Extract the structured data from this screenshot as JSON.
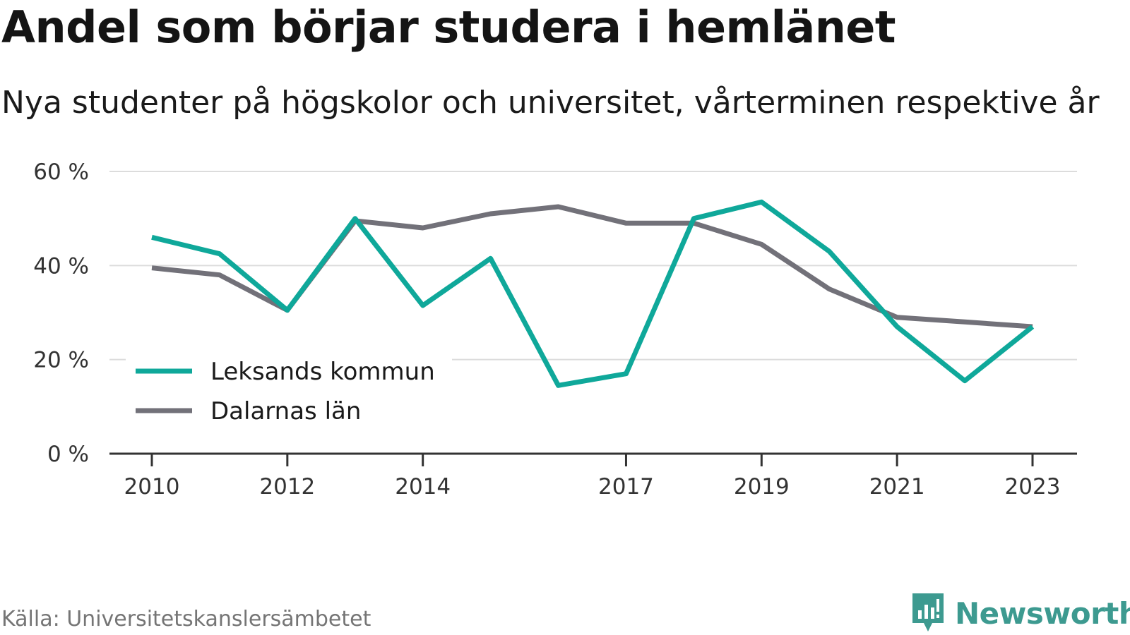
{
  "chart_data": {
    "type": "line",
    "title": "Andel som börjar studera i hemlänet",
    "subtitle": "Nya studenter på högskolor och universitet, vårterminen respektive år",
    "x": [
      2010,
      2011,
      2012,
      2013,
      2014,
      2015,
      2016,
      2017,
      2018,
      2019,
      2020,
      2021,
      2022,
      2023
    ],
    "x_ticks": [
      2010,
      2012,
      2014,
      2017,
      2019,
      2021,
      2023
    ],
    "y_ticks": [
      0,
      20,
      40,
      60
    ],
    "y_tick_labels": [
      "0 %",
      "20 %",
      "40 %",
      "60 %"
    ],
    "ylim": [
      0,
      60
    ],
    "grid": true,
    "legend_position": "bottom-left",
    "series": [
      {
        "name": "Leksands kommun",
        "color": "#0fa89a",
        "values": [
          46,
          42.5,
          30.5,
          50,
          31.5,
          41.5,
          14.5,
          17,
          50,
          53.5,
          43,
          27,
          15.5,
          27
        ]
      },
      {
        "name": "Dalarnas län",
        "color": "#727179",
        "values": [
          39.5,
          38,
          30.5,
          49.5,
          48,
          51,
          52.5,
          49,
          49,
          44.5,
          35,
          29,
          28,
          27
        ]
      }
    ]
  },
  "source": "Källa: Universitetskanslersämbetet",
  "brand": {
    "name": "Newsworthy",
    "color": "#3d9a90"
  }
}
